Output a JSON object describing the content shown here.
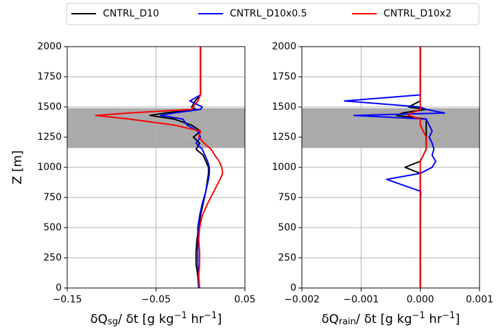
{
  "chart_data": [
    {
      "type": "line",
      "y_label": "Z [m]",
      "x_label_parts": [
        "δQ",
        "sg",
        "/ δt [g kg",
        "−1",
        " hr",
        "−1",
        "]"
      ],
      "x_label_styles": [
        "normal",
        "sub",
        "normal",
        "sup",
        "normal",
        "sup",
        "normal"
      ],
      "xlim": [
        -0.15,
        0.05
      ],
      "ylim": [
        0,
        2000
      ],
      "xticks": [
        {
          "value": -0.15,
          "label": "−0.15"
        },
        {
          "value": -0.05,
          "label": "−0.05"
        },
        0.05
      ],
      "yticks": [
        0,
        250,
        500,
        750,
        1000,
        1250,
        1500,
        1750,
        2000
      ],
      "grid": true,
      "legend": "top",
      "shade": {
        "y": [
          1160,
          1490
        ],
        "color": "#aaaaaa"
      },
      "levels": [
        0,
        100,
        200,
        300,
        400,
        500,
        600,
        700,
        800,
        900,
        950,
        1000,
        1050,
        1100,
        1150,
        1200,
        1250,
        1300,
        1350,
        1400,
        1430,
        1450,
        1480,
        1500,
        1550,
        1600,
        1700,
        2000
      ],
      "series": [
        {
          "name": "CNTRL_D10",
          "color": "#000000",
          "values": [
            -0.002,
            -0.003,
            -0.005,
            -0.005,
            -0.004,
            -0.002,
            0.0,
            0.003,
            0.006,
            0.008,
            0.009,
            0.009,
            0.006,
            0.003,
            -0.005,
            -0.001,
            -0.008,
            0.0,
            -0.01,
            -0.03,
            -0.057,
            -0.04,
            -0.005,
            -0.01,
            -0.006,
            0.0,
            0.0,
            0.0
          ]
        },
        {
          "name": "CNTRL_D10x0.5",
          "color": "#0000ff",
          "values": [
            -0.002,
            -0.002,
            -0.003,
            -0.003,
            -0.003,
            -0.003,
            -0.001,
            0.002,
            0.006,
            0.009,
            0.01,
            0.01,
            0.008,
            0.005,
            0.002,
            -0.005,
            0.0,
            -0.003,
            -0.015,
            -0.02,
            -0.045,
            -0.03,
            0.0,
            0.002,
            -0.012,
            0.0,
            0.0,
            0.0
          ]
        },
        {
          "name": "CNTRL_D10x2",
          "color": "#ff0000",
          "values": [
            -0.001,
            -0.002,
            -0.001,
            -0.001,
            -0.002,
            -0.001,
            0.002,
            0.008,
            0.015,
            0.022,
            0.025,
            0.024,
            0.021,
            0.016,
            0.012,
            0.004,
            -0.002,
            0.0,
            -0.03,
            -0.08,
            -0.118,
            -0.08,
            -0.01,
            -0.008,
            -0.003,
            0.0,
            0.0,
            0.0
          ]
        }
      ]
    },
    {
      "type": "line",
      "x_label_parts": [
        "δQ",
        "rain",
        "/ δt [g kg",
        "−1",
        " hr",
        "−1",
        "]"
      ],
      "x_label_styles": [
        "normal",
        "sub",
        "normal",
        "sup",
        "normal",
        "sup",
        "normal"
      ],
      "xlim": [
        -0.002,
        0.001
      ],
      "ylim": [
        0,
        2000
      ],
      "xticks": [
        {
          "value": -0.002,
          "label": "−0.002"
        },
        {
          "value": -0.001,
          "label": "−0.001"
        },
        {
          "value": 0,
          "label": "0.000"
        },
        0.001
      ],
      "yticks": [
        0,
        250,
        500,
        750,
        1000,
        1250,
        1500,
        1750,
        2000
      ],
      "grid": true,
      "shade": {
        "y": [
          1160,
          1490
        ],
        "color": "#aaaaaa"
      },
      "levels": [
        0,
        100,
        200,
        300,
        400,
        500,
        600,
        700,
        800,
        900,
        950,
        1000,
        1050,
        1100,
        1150,
        1200,
        1250,
        1300,
        1350,
        1400,
        1430,
        1450,
        1480,
        1500,
        1550,
        1600,
        1700,
        2000
      ],
      "series": [
        {
          "name": "CNTRL_D10",
          "color": "#000000",
          "values": [
            0,
            0,
            0,
            0,
            0,
            0,
            0,
            0,
            0,
            0,
            0,
            -0.00026,
            0,
            5e-05,
            0.0001,
            0.0001,
            0.0001,
            0.0001,
            0.0001,
            0.0001,
            -0.0004,
            -0.0003,
            0.0001,
            -0.0002,
            0,
            0,
            0,
            0
          ]
        },
        {
          "name": "CNTRL_D10x0.5",
          "color": "#0000ff",
          "values": [
            0,
            0,
            0,
            0,
            0,
            0,
            0,
            0,
            1e-05,
            -0.00057,
            0,
            0.0002,
            0.00026,
            0.0002,
            0.00023,
            0.0002,
            0.00015,
            0.0002,
            0.00015,
            0.0001,
            -0.00112,
            0.00041,
            0.0001,
            0,
            -0.00128,
            0,
            0,
            0
          ]
        },
        {
          "name": "CNTRL_D10x2",
          "color": "#ff0000",
          "values": [
            0,
            0,
            0,
            0,
            0,
            0,
            0,
            0,
            0,
            0,
            0,
            0,
            0,
            5e-05,
            0.0001,
            0.0001,
            0.0001,
            5e-05,
            0,
            0,
            -0.0002,
            -0.00015,
            0,
            0,
            0,
            0,
            0,
            0
          ]
        }
      ]
    }
  ]
}
